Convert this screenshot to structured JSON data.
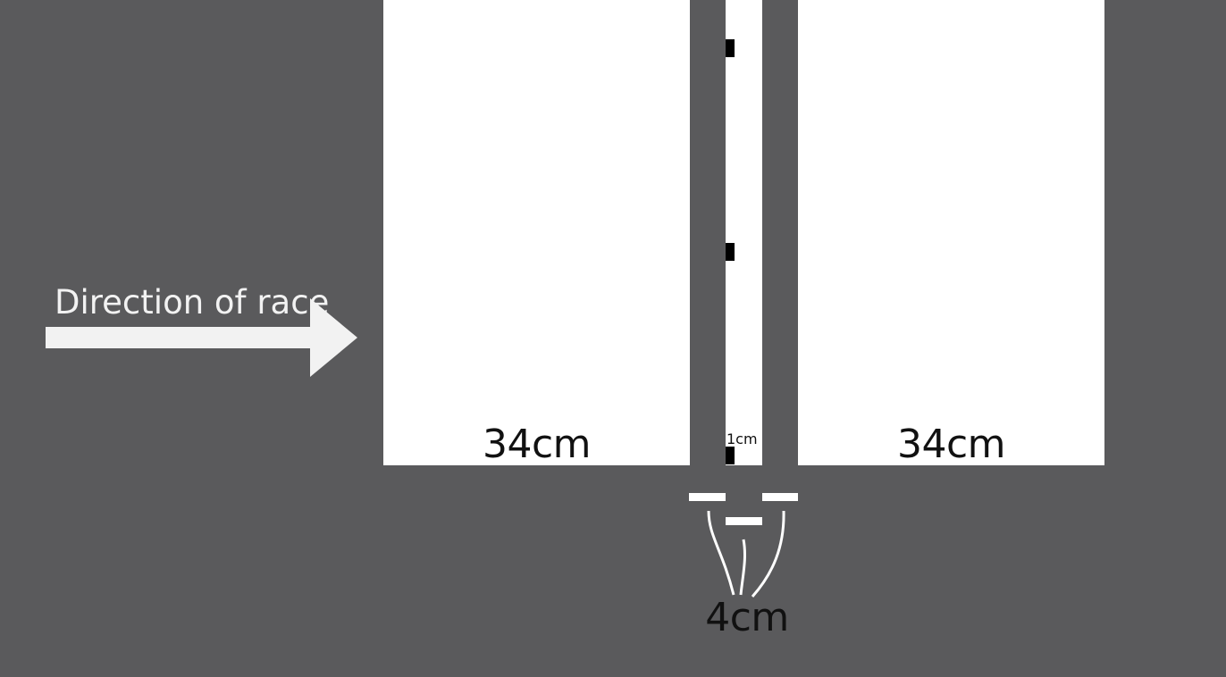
{
  "colors": {
    "background": "#5a5a5c",
    "block": "#ffffff",
    "arrow": "#f2f2f2",
    "tick": "#000000",
    "text": "#111111"
  },
  "direction": {
    "label": "Direction of race",
    "arrow_icon": "right-arrow-icon"
  },
  "left_block": {
    "label": "34cm"
  },
  "right_block": {
    "label": "34cm"
  },
  "center_strip": {
    "label": "1cm"
  },
  "gap": {
    "label": "4cm"
  }
}
